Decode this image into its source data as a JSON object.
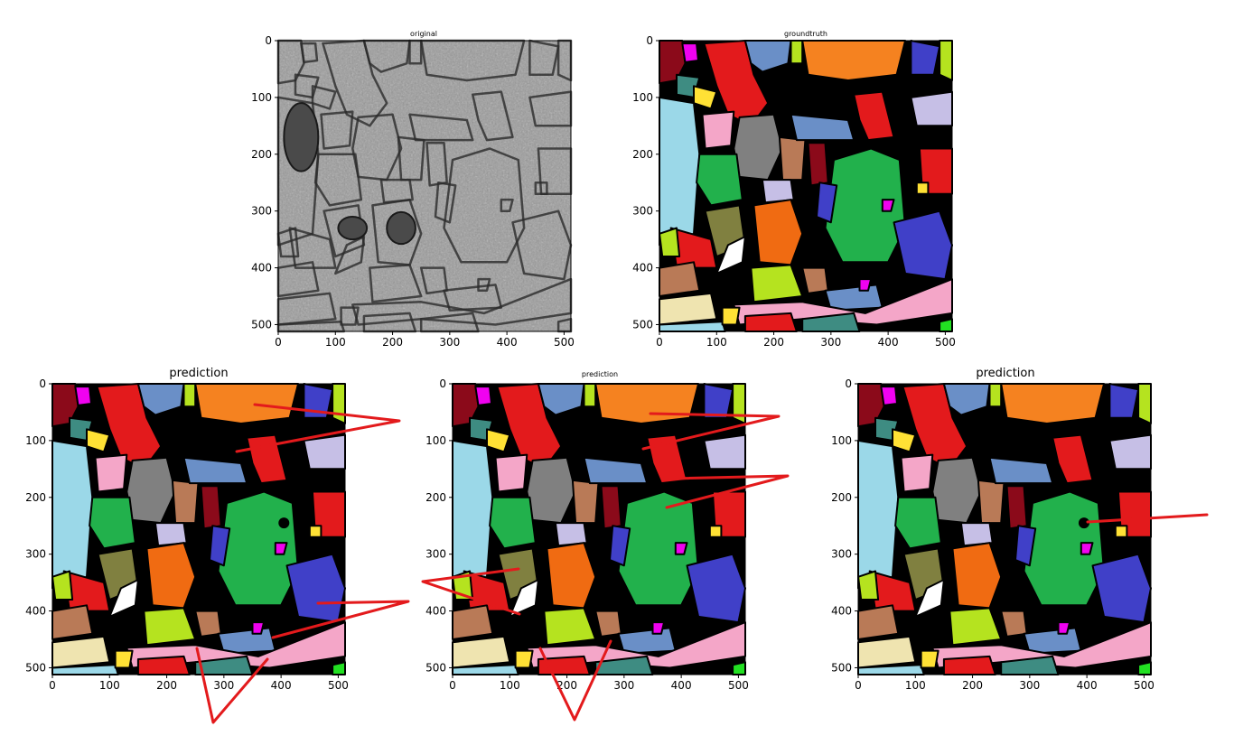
{
  "panels": [
    {
      "id": "original",
      "title": "original",
      "title_size": "small",
      "kind": "em-image"
    },
    {
      "id": "groundtruth",
      "title": "groundtruth",
      "title_size": "small",
      "kind": "segmentation",
      "variant": "gt"
    },
    {
      "id": "prediction-1",
      "title": "prediction",
      "title_size": "large",
      "kind": "segmentation",
      "variant": "pred1"
    },
    {
      "id": "prediction-2",
      "title": "prediction",
      "title_size": "small",
      "kind": "segmentation",
      "variant": "pred2"
    },
    {
      "id": "prediction-3",
      "title": "prediction",
      "title_size": "large",
      "kind": "segmentation",
      "variant": "pred3"
    }
  ],
  "axis": {
    "range": [
      0,
      512
    ],
    "x_ticks": [
      "0",
      "100",
      "200",
      "300",
      "400",
      "500"
    ],
    "y_ticks": [
      "0",
      "100",
      "200",
      "300",
      "400",
      "500"
    ]
  },
  "palette": {
    "background": "#000000",
    "red": "#e31a1c",
    "darkred": "#8b0a1a",
    "steelblue": "#6a8fc7",
    "orange": "#f58220",
    "darkorange": "#f06b12",
    "yellow": "#ffe135",
    "magenta": "#f002f0",
    "teal": "#3e8c82",
    "lightblue": "#9bd8e8",
    "lime": "#b5e31f",
    "green": "#22b14c",
    "gray": "#808080",
    "brown": "#b97a57",
    "olive": "#808040",
    "lavender": "#c6bfe6",
    "pink": "#f4a6c8",
    "royalblue": "#4040c8",
    "cream": "#efe4b0",
    "white": "#ffffff",
    "brightgreen": "#22e022",
    "annotation": "#e31a1c"
  }
}
